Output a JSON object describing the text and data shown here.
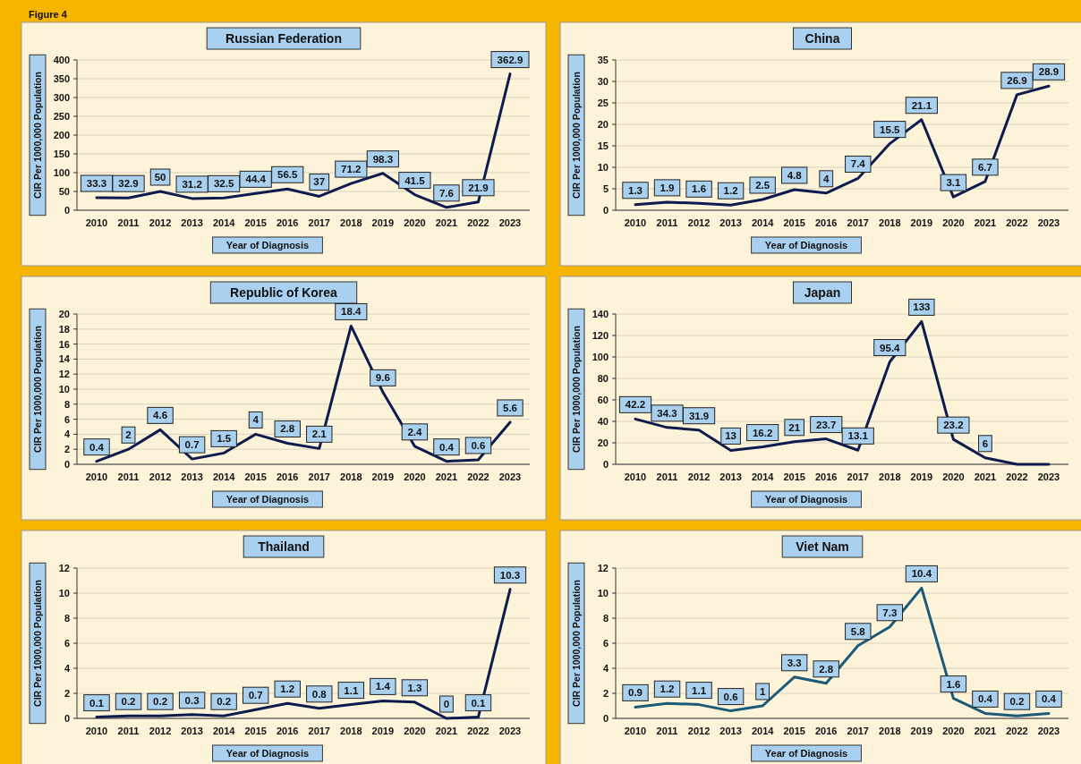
{
  "chart_data": [
    {
      "type": "line",
      "title": "Russian Federation",
      "xlabel": "Year of Diagnosis",
      "ylabel": "CIR Per 1000,000 Population",
      "annotations": [
        "Figure 4"
      ],
      "categories": [
        "2010",
        "2011",
        "2012",
        "2013",
        "2014",
        "2015",
        "2016",
        "2017",
        "2018",
        "2019",
        "2020",
        "2021",
        "2022",
        "2023"
      ],
      "series": [
        {
          "color": "#0d1b4f",
          "values": [
            33.3,
            32.9,
            50,
            31.2,
            32.5,
            44.4,
            56.5,
            37,
            71.2,
            98.3,
            41.5,
            7.6,
            21.9,
            362.9
          ]
        }
      ],
      "ylim": [
        0,
        400
      ],
      "yticks": [
        0,
        50,
        100,
        150,
        200,
        250,
        300,
        350,
        400
      ],
      "grid": "y",
      "data_labels": true
    },
    {
      "type": "line",
      "title": "China",
      "xlabel": "Year of Diagnosis",
      "ylabel": "CIR Per 1000,000 Population",
      "categories": [
        "2010",
        "2011",
        "2012",
        "2013",
        "2014",
        "2015",
        "2016",
        "2017",
        "2018",
        "2019",
        "2020",
        "2021",
        "2022",
        "2023"
      ],
      "series": [
        {
          "color": "#0d1b4f",
          "values": [
            1.3,
            1.9,
            1.6,
            1.2,
            2.5,
            4.8,
            4,
            7.4,
            15.5,
            21.1,
            3.1,
            6.7,
            26.9,
            28.9
          ]
        }
      ],
      "ylim": [
        0,
        35
      ],
      "yticks": [
        0,
        5,
        10,
        15,
        20,
        25,
        30,
        35
      ],
      "grid": "y",
      "data_labels": true
    },
    {
      "type": "line",
      "title": "Republic of Korea",
      "xlabel": "Year of Diagnosis",
      "ylabel": "CIR Per 1000,000 Population",
      "categories": [
        "2010",
        "2011",
        "2012",
        "2013",
        "2014",
        "2015",
        "2016",
        "2017",
        "2018",
        "2019",
        "2020",
        "2021",
        "2022",
        "2023"
      ],
      "series": [
        {
          "color": "#0d1b4f",
          "values": [
            0.4,
            2,
            4.6,
            0.7,
            1.5,
            4,
            2.8,
            2.1,
            18.4,
            9.6,
            2.4,
            0.4,
            0.6,
            5.6
          ]
        }
      ],
      "ylim": [
        0,
        20
      ],
      "yticks": [
        0,
        2,
        4,
        6,
        8,
        10,
        12,
        14,
        16,
        18,
        20
      ],
      "grid": "y",
      "data_labels": true
    },
    {
      "type": "line",
      "title": "Japan",
      "xlabel": "Year of Diagnosis",
      "ylabel": "CIR Per 1000,000 Population",
      "categories": [
        "2010",
        "2011",
        "2012",
        "2013",
        "2014",
        "2015",
        "2016",
        "2017",
        "2018",
        "2019",
        "2020",
        "2021",
        "2022",
        "2023"
      ],
      "series": [
        {
          "color": "#0d1b4f",
          "values": [
            42.2,
            34.3,
            31.9,
            13,
            16.2,
            21,
            23.7,
            13.1,
            95.4,
            133,
            23.2,
            6,
            0,
            0
          ],
          "value_labels": [
            "42.2",
            "34.3",
            "31.9",
            "13",
            "16.2",
            "21",
            "23.7",
            "13.1",
            "95.4",
            "133",
            "23.2",
            "6",
            null,
            null
          ]
        }
      ],
      "ylim": [
        0,
        140
      ],
      "yticks": [
        0,
        20,
        40,
        60,
        80,
        100,
        120,
        140
      ],
      "grid": "y"
    },
    {
      "type": "line",
      "title": "Thailand",
      "xlabel": "Year of Diagnosis",
      "ylabel": "CIR Per 1000,000 Population",
      "categories": [
        "2010",
        "2011",
        "2012",
        "2013",
        "2014",
        "2015",
        "2016",
        "2017",
        "2018",
        "2019",
        "2020",
        "2021",
        "2022",
        "2023"
      ],
      "series": [
        {
          "color": "#0d1b4f",
          "values": [
            0.1,
            0.2,
            0.2,
            0.3,
            0.2,
            0.7,
            1.2,
            0.8,
            1.1,
            1.4,
            1.3,
            0,
            0.1,
            10.3
          ]
        }
      ],
      "ylim": [
        0,
        12
      ],
      "yticks": [
        0,
        2,
        4,
        6,
        8,
        10,
        12
      ],
      "grid": "y",
      "data_labels": true
    },
    {
      "type": "line",
      "title": "Viet Nam",
      "xlabel": "Year of Diagnosis",
      "ylabel": "CIR Per 1000,000 Population",
      "categories": [
        "2010",
        "2011",
        "2012",
        "2013",
        "2014",
        "2015",
        "2016",
        "2017",
        "2018",
        "2019",
        "2020",
        "2021",
        "2022",
        "2023"
      ],
      "series": [
        {
          "color": "#1b5a78",
          "values": [
            0.9,
            1.2,
            1.1,
            0.6,
            1,
            3.3,
            2.8,
            5.8,
            7.3,
            10.4,
            1.6,
            0.4,
            0.2,
            0.4
          ]
        }
      ],
      "ylim": [
        0,
        12
      ],
      "yticks": [
        0,
        2,
        4,
        6,
        8,
        10,
        12
      ],
      "grid": "y",
      "data_labels": true
    }
  ]
}
